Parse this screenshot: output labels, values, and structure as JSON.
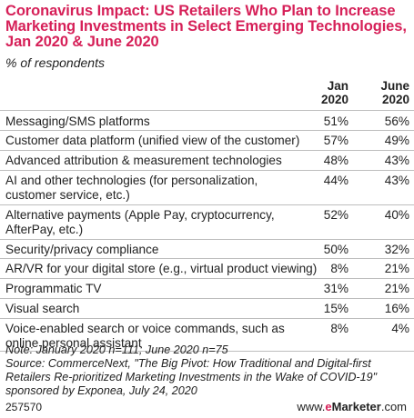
{
  "header": {
    "title": "Coronavirus Impact: US Retailers Who Plan to Increase Marketing Investments in Select Emerging Technologies, Jan 2020 & June 2020",
    "subtitle": "% of respondents"
  },
  "chart_data": {
    "type": "table",
    "title": "Coronavirus Impact: US Retailers Who Plan to Increase Marketing Investments in Select Emerging Technologies, Jan 2020 & June 2020",
    "subtitle": "% of respondents",
    "columns": [
      {
        "line1": "Jan",
        "line2": "2020"
      },
      {
        "line1": "June",
        "line2": "2020"
      }
    ],
    "rows": [
      {
        "label": "Messaging/SMS platforms",
        "jan": "51%",
        "june": "56%"
      },
      {
        "label": "Customer data platform (unified view of the customer)",
        "jan": "57%",
        "june": "49%"
      },
      {
        "label": "Advanced attribution & measurement technologies",
        "jan": "48%",
        "june": "43%"
      },
      {
        "label": "AI and other technologies (for personalization, customer service, etc.)",
        "jan": "44%",
        "june": "43%"
      },
      {
        "label": "Alternative payments (Apple Pay, cryptocurrency, AfterPay, etc.)",
        "jan": "52%",
        "june": "40%"
      },
      {
        "label": "Security/privacy compliance",
        "jan": "50%",
        "june": "32%"
      },
      {
        "label": "AR/VR for your digital store (e.g., virtual product viewing)",
        "jan": "8%",
        "june": "21%"
      },
      {
        "label": "Programmatic TV",
        "jan": "31%",
        "june": "21%"
      },
      {
        "label": "Visual search",
        "jan": "15%",
        "june": "16%"
      },
      {
        "label": "Voice-enabled search or voice commands, such as online personal assistant",
        "jan": "8%",
        "june": "4%"
      }
    ]
  },
  "footer": {
    "note": "Note: January 2020 n=111; June 2020 n=75",
    "source": "Source: CommerceNext, \"The Big Pivot: How Traditional and Digital-first Retailers Re-prioritized Marketing Investments in the Wake of COVID-19\" sponsored by Exponea, July 24, 2020",
    "code": "257570",
    "brand_prefix": "www.",
    "brand_e": "e",
    "brand_name": "Marketer",
    "brand_suffix": ".com"
  }
}
